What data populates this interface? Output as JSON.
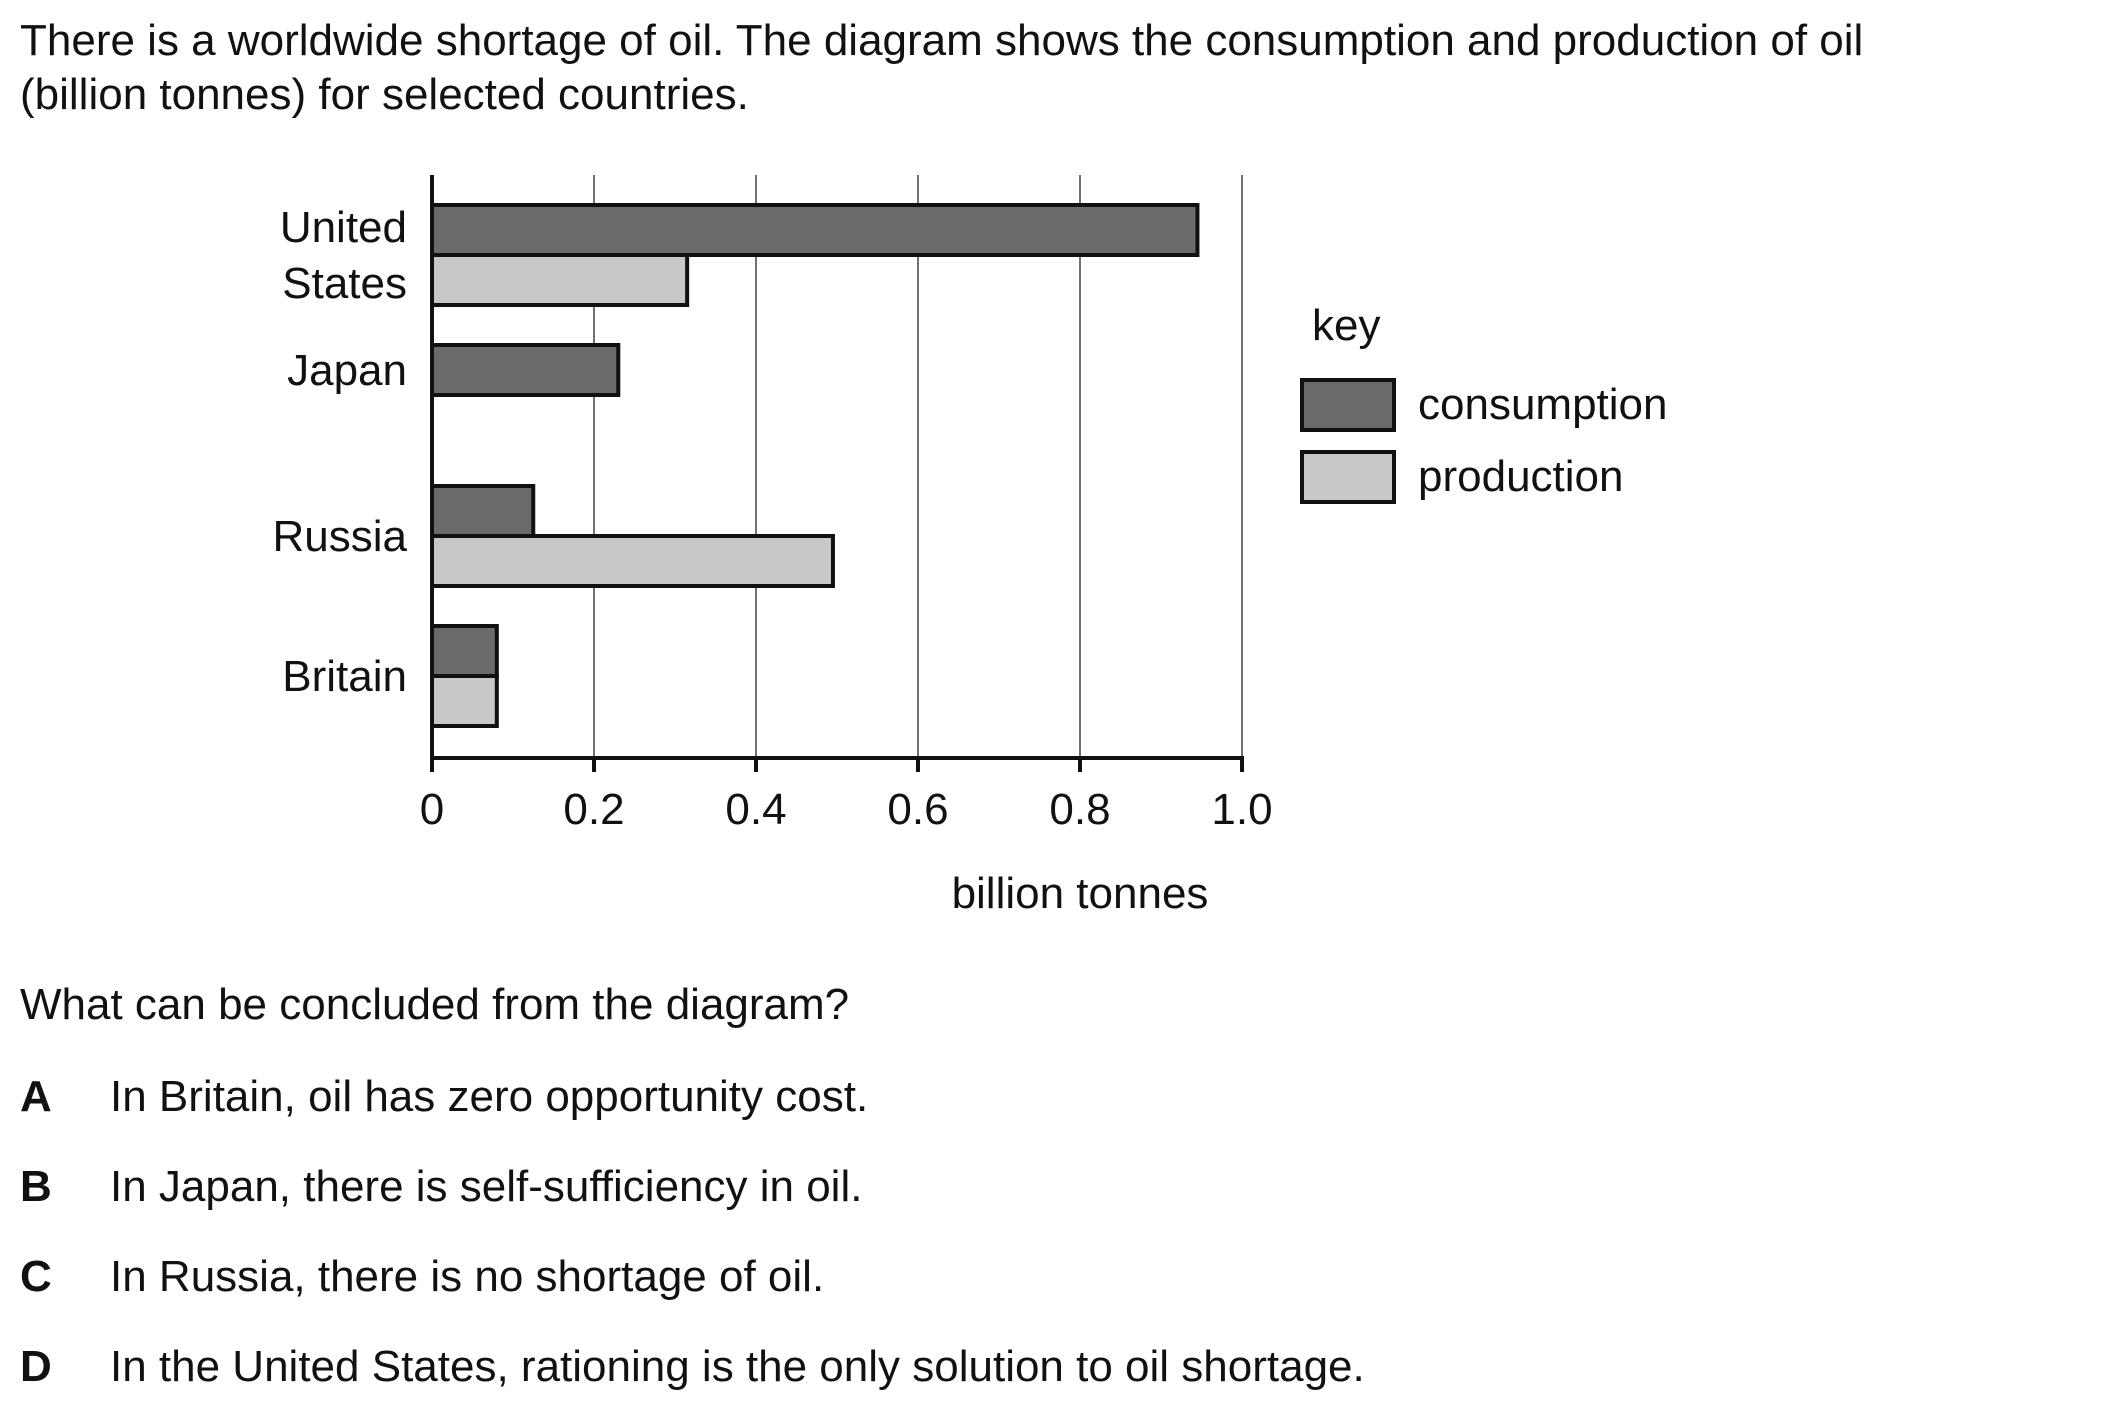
{
  "intro": {
    "line1": "There is a worldwide shortage of oil. The diagram shows the consumption and production of oil",
    "line2": "(billion tonnes) for selected countries."
  },
  "chart_data": {
    "type": "bar",
    "orientation": "horizontal",
    "categories": [
      [
        "United",
        "States"
      ],
      [
        "Japan"
      ],
      [
        "Russia"
      ],
      [
        "Britain"
      ]
    ],
    "series": [
      {
        "name": "consumption",
        "values": [
          0.945,
          0.23,
          0.125,
          0.08
        ],
        "color": "#6a6a6a"
      },
      {
        "name": "production",
        "values": [
          0.315,
          0,
          0.495,
          0.08
        ],
        "color": "#c8c8c8"
      }
    ],
    "xlabel": "billion tonnes",
    "xlim": [
      0,
      1.0
    ],
    "xticks": [
      "0",
      "0.2",
      "0.4",
      "0.6",
      "0.8",
      "1.0"
    ],
    "grid": "vertical",
    "legend": {
      "title": "key",
      "position": "right"
    }
  },
  "question": {
    "prompt": "What can be concluded from the diagram?",
    "options": [
      {
        "letter": "A",
        "text": "In Britain, oil has zero opportunity cost."
      },
      {
        "letter": "B",
        "text": "In Japan, there is self-sufficiency in oil."
      },
      {
        "letter": "C",
        "text": "In Russia, there is no shortage of oil."
      },
      {
        "letter": "D",
        "text": "In the United States, rationing is the only solution to oil shortage."
      }
    ]
  }
}
